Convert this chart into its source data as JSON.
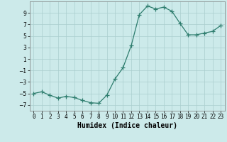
{
  "x": [
    0,
    1,
    2,
    3,
    4,
    5,
    6,
    7,
    8,
    9,
    10,
    11,
    12,
    13,
    14,
    15,
    16,
    17,
    18,
    19,
    20,
    21,
    22,
    23
  ],
  "y": [
    -5.0,
    -4.7,
    -5.3,
    -5.8,
    -5.5,
    -5.7,
    -6.2,
    -6.6,
    -6.7,
    -5.3,
    -2.5,
    -0.5,
    3.3,
    8.7,
    10.2,
    9.7,
    10.0,
    9.3,
    7.2,
    5.2,
    5.2,
    5.5,
    5.8,
    6.8
  ],
  "line_color": "#2e7d6e",
  "marker": "+",
  "marker_size": 4,
  "bg_color": "#cceaea",
  "grid_color": "#aacece",
  "xlabel": "Humidex (Indice chaleur)",
  "xlim": [
    -0.5,
    23.5
  ],
  "ylim": [
    -8,
    11
  ],
  "yticks": [
    -7,
    -5,
    -3,
    -1,
    1,
    3,
    5,
    7,
    9
  ],
  "tick_fontsize": 5.5,
  "xlabel_fontsize": 7.0
}
